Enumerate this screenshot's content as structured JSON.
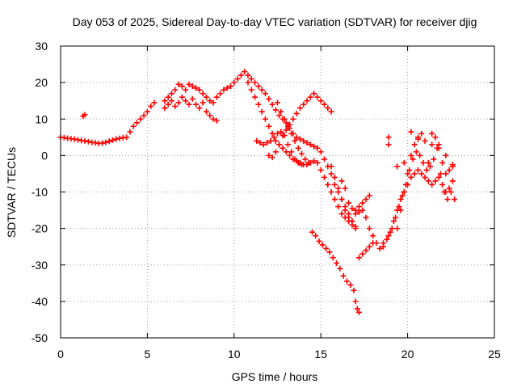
{
  "chart_data": {
    "type": "scatter",
    "title": "Day 053 of 2025, Sidereal Day-to-day VTEC variation (SDTVAR) for receiver djig",
    "xlabel": "GPS time / hours",
    "ylabel": "SDTVAR / TECUs",
    "xlim": [
      0,
      25
    ],
    "ylim": [
      -50,
      30
    ],
    "x_ticks": [
      "0",
      "5",
      "10",
      "15",
      "20",
      "25"
    ],
    "y_ticks": [
      "30",
      "20",
      "10",
      "0",
      "-10",
      "-20",
      "-30",
      "-40",
      "-50"
    ],
    "grid": true,
    "marker": "plus",
    "color": "#ff0000",
    "series": [
      {
        "points": [
          [
            0.0,
            5.0
          ],
          [
            0.2,
            4.9
          ],
          [
            0.4,
            4.7
          ],
          [
            0.6,
            4.6
          ],
          [
            0.8,
            4.5
          ],
          [
            1.0,
            4.3
          ],
          [
            1.2,
            4.1
          ],
          [
            1.4,
            4.0
          ],
          [
            1.6,
            3.8
          ],
          [
            1.8,
            3.6
          ],
          [
            2.0,
            3.5
          ],
          [
            2.2,
            3.3
          ],
          [
            2.4,
            3.4
          ],
          [
            2.6,
            3.6
          ],
          [
            2.8,
            3.9
          ],
          [
            3.0,
            4.2
          ],
          [
            3.2,
            4.5
          ],
          [
            3.4,
            4.7
          ],
          [
            3.6,
            4.9
          ],
          [
            3.8,
            5.0
          ],
          [
            4.0,
            6.5
          ],
          [
            4.2,
            8.0
          ],
          [
            4.4,
            9.0
          ],
          [
            4.6,
            10.0
          ],
          [
            4.8,
            11.0
          ],
          [
            5.0,
            12.0
          ],
          [
            5.2,
            13.5
          ],
          [
            5.4,
            14.5
          ],
          [
            1.3,
            10.8
          ],
          [
            1.4,
            11.2
          ],
          [
            6.0,
            15.0
          ],
          [
            6.2,
            16.0
          ],
          [
            6.4,
            17.0
          ],
          [
            6.6,
            18.0
          ],
          [
            6.8,
            19.5
          ],
          [
            7.0,
            19.0
          ],
          [
            7.2,
            18.0
          ],
          [
            7.4,
            19.5
          ],
          [
            7.6,
            19.0
          ],
          [
            7.8,
            18.5
          ],
          [
            8.0,
            18.0
          ],
          [
            8.2,
            17.0
          ],
          [
            8.4,
            16.0
          ],
          [
            8.6,
            15.0
          ],
          [
            8.8,
            14.5
          ],
          [
            9.0,
            16.0
          ],
          [
            9.2,
            17.0
          ],
          [
            9.4,
            18.0
          ],
          [
            9.6,
            18.5
          ],
          [
            9.8,
            19.0
          ],
          [
            10.0,
            20.0
          ],
          [
            10.2,
            21.0
          ],
          [
            10.4,
            22.0
          ],
          [
            10.6,
            23.0
          ],
          [
            10.8,
            22.0
          ],
          [
            11.0,
            21.0
          ],
          [
            11.2,
            20.0
          ],
          [
            11.4,
            19.0
          ],
          [
            11.6,
            18.0
          ],
          [
            11.8,
            17.0
          ],
          [
            12.0,
            15.5
          ],
          [
            12.2,
            14.0
          ],
          [
            12.4,
            12.5
          ],
          [
            12.6,
            11.0
          ],
          [
            12.8,
            10.0
          ],
          [
            13.0,
            9.0
          ],
          [
            13.2,
            7.5
          ],
          [
            13.4,
            6.0
          ],
          [
            13.6,
            5.0
          ],
          [
            13.8,
            4.5
          ],
          [
            14.0,
            4.0
          ],
          [
            14.2,
            3.5
          ],
          [
            14.4,
            3.0
          ],
          [
            14.6,
            2.5
          ],
          [
            14.8,
            2.0
          ],
          [
            15.0,
            1.0
          ],
          [
            15.2,
            -1.0
          ],
          [
            15.4,
            -3.0
          ],
          [
            15.6,
            -5.0
          ],
          [
            15.8,
            -8.0
          ],
          [
            16.0,
            -10.0
          ],
          [
            16.2,
            -12.0
          ],
          [
            16.4,
            -14.0
          ],
          [
            16.6,
            -16.0
          ],
          [
            16.8,
            -18.0
          ],
          [
            17.0,
            -20.0
          ],
          [
            6.0,
            13.0
          ],
          [
            6.2,
            14.0
          ],
          [
            6.4,
            15.0
          ],
          [
            6.6,
            13.5
          ],
          [
            6.8,
            14.5
          ],
          [
            7.0,
            16.0
          ],
          [
            7.2,
            15.0
          ],
          [
            7.4,
            14.0
          ],
          [
            7.6,
            15.5
          ],
          [
            7.8,
            14.0
          ],
          [
            8.0,
            13.0
          ],
          [
            8.2,
            14.5
          ],
          [
            8.4,
            12.0
          ],
          [
            8.6,
            11.0
          ],
          [
            8.8,
            10.0
          ],
          [
            9.0,
            9.5
          ],
          [
            10.8,
            20.0
          ],
          [
            11.0,
            18.0
          ],
          [
            11.2,
            16.0
          ],
          [
            11.4,
            14.0
          ],
          [
            11.6,
            12.0
          ],
          [
            11.8,
            10.0
          ],
          [
            12.0,
            8.0
          ],
          [
            12.2,
            6.0
          ],
          [
            12.4,
            4.0
          ],
          [
            12.6,
            3.0
          ],
          [
            12.8,
            2.0
          ],
          [
            13.0,
            1.0
          ],
          [
            13.2,
            0.0
          ],
          [
            13.4,
            -1.0
          ],
          [
            13.6,
            -1.5
          ],
          [
            13.8,
            -2.0
          ],
          [
            14.0,
            -2.5
          ],
          [
            14.2,
            -2.5
          ],
          [
            14.4,
            -2.0
          ],
          [
            14.6,
            -1.5
          ],
          [
            14.8,
            -2.0
          ],
          [
            15.0,
            -4.0
          ],
          [
            15.2,
            -6.0
          ],
          [
            15.4,
            -8.0
          ],
          [
            15.6,
            -10.0
          ],
          [
            15.8,
            -12.0
          ],
          [
            16.0,
            -14.0
          ],
          [
            16.2,
            -16.0
          ],
          [
            16.4,
            -17.0
          ],
          [
            16.6,
            -18.0
          ],
          [
            16.8,
            -19.0
          ],
          [
            17.0,
            -19.5
          ],
          [
            11.3,
            4.0
          ],
          [
            11.5,
            3.5
          ],
          [
            11.7,
            3.0
          ],
          [
            11.9,
            3.5
          ],
          [
            12.1,
            4.0
          ],
          [
            12.3,
            5.0
          ],
          [
            12.5,
            6.0
          ],
          [
            12.7,
            6.5
          ],
          [
            12.9,
            5.5
          ],
          [
            13.1,
            3.0
          ],
          [
            13.3,
            1.0
          ],
          [
            13.5,
            -1.0
          ],
          [
            13.7,
            -2.0
          ],
          [
            13.9,
            -2.5
          ],
          [
            12.0,
            0.0
          ],
          [
            12.2,
            -0.5
          ],
          [
            12.4,
            1.0
          ],
          [
            12.6,
            3.0
          ],
          [
            12.8,
            5.5
          ],
          [
            13.0,
            7.0
          ],
          [
            13.2,
            8.5
          ],
          [
            13.4,
            10.0
          ],
          [
            13.6,
            11.5
          ],
          [
            13.8,
            13.0
          ],
          [
            14.0,
            14.0
          ],
          [
            14.2,
            15.0
          ],
          [
            14.4,
            16.0
          ],
          [
            14.6,
            17.0
          ],
          [
            14.8,
            16.0
          ],
          [
            15.0,
            15.0
          ],
          [
            15.2,
            14.0
          ],
          [
            15.4,
            13.0
          ],
          [
            15.6,
            12.0
          ],
          [
            12.5,
            14.5
          ],
          [
            12.7,
            12.0
          ],
          [
            12.9,
            10.0
          ],
          [
            13.1,
            8.0
          ],
          [
            13.3,
            6.0
          ],
          [
            13.5,
            4.0
          ],
          [
            13.7,
            2.0
          ],
          [
            13.9,
            0.5
          ],
          [
            14.1,
            -1.0
          ],
          [
            14.3,
            -2.0
          ],
          [
            14.5,
            -21.0
          ],
          [
            14.7,
            -22.0
          ],
          [
            14.9,
            -23.5
          ],
          [
            15.1,
            -24.5
          ],
          [
            15.3,
            -25.5
          ],
          [
            15.5,
            -26.5
          ],
          [
            15.7,
            -28.0
          ],
          [
            15.9,
            -29.5
          ],
          [
            16.1,
            -31.0
          ],
          [
            16.3,
            -33.0
          ],
          [
            16.5,
            -34.5
          ],
          [
            16.7,
            -35.5
          ],
          [
            16.9,
            -37.0
          ],
          [
            17.0,
            -40.0
          ],
          [
            17.1,
            -42.0
          ],
          [
            17.2,
            -43.0
          ],
          [
            15.6,
            -3.0
          ],
          [
            15.8,
            -6.0
          ],
          [
            16.0,
            -9.0
          ],
          [
            16.2,
            -12.0
          ],
          [
            16.4,
            -15.0
          ],
          [
            16.6,
            -17.0
          ],
          [
            16.8,
            -18.0
          ],
          [
            17.0,
            -16.0
          ],
          [
            17.2,
            -15.5
          ],
          [
            17.4,
            -15.0
          ],
          [
            17.6,
            -17.0
          ],
          [
            17.8,
            -20.0
          ],
          [
            18.0,
            -22.0
          ],
          [
            18.2,
            -24.0
          ],
          [
            18.4,
            -25.5
          ],
          [
            18.6,
            -24.0
          ],
          [
            16.2,
            -7.0
          ],
          [
            16.4,
            -9.0
          ],
          [
            16.6,
            -13.0
          ],
          [
            16.8,
            -14.5
          ],
          [
            17.0,
            -15.0
          ],
          [
            17.2,
            -14.0
          ],
          [
            17.4,
            -13.0
          ],
          [
            17.6,
            -12.0
          ],
          [
            17.8,
            -11.0
          ],
          [
            17.2,
            -28.0
          ],
          [
            17.4,
            -27.0
          ],
          [
            17.6,
            -26.0
          ],
          [
            17.8,
            -25.0
          ],
          [
            18.0,
            -24.0
          ],
          [
            18.6,
            -25.0
          ],
          [
            18.8,
            -23.0
          ],
          [
            19.0,
            -21.0
          ],
          [
            19.2,
            -18.0
          ],
          [
            19.4,
            -15.0
          ],
          [
            19.6,
            -12.0
          ],
          [
            19.8,
            -10.0
          ],
          [
            20.0,
            -8.0
          ],
          [
            20.2,
            -6.0
          ],
          [
            20.4,
            -5.0
          ],
          [
            20.6,
            -4.0
          ],
          [
            20.8,
            -5.0
          ],
          [
            21.0,
            -6.0
          ],
          [
            21.2,
            -7.0
          ],
          [
            21.4,
            -8.0
          ],
          [
            21.6,
            -7.0
          ],
          [
            21.8,
            -6.0
          ],
          [
            22.0,
            -8.0
          ],
          [
            22.2,
            -10.0
          ],
          [
            22.4,
            -9.0
          ],
          [
            22.6,
            -7.0
          ],
          [
            18.9,
            -22.0
          ],
          [
            19.1,
            -20.0
          ],
          [
            19.3,
            -17.0
          ],
          [
            19.5,
            -14.0
          ],
          [
            19.7,
            -11.0
          ],
          [
            19.9,
            -8.0
          ],
          [
            20.1,
            -4.0
          ],
          [
            20.3,
            -1.0
          ],
          [
            20.5,
            1.0
          ],
          [
            20.7,
            0.0
          ],
          [
            20.9,
            -2.0
          ],
          [
            21.1,
            -4.0
          ],
          [
            21.3,
            -3.0
          ],
          [
            21.5,
            -1.0
          ],
          [
            21.7,
            2.0
          ],
          [
            21.9,
            -5.0
          ],
          [
            22.1,
            -10.0
          ],
          [
            22.3,
            -12.0
          ],
          [
            22.5,
            -10.0
          ],
          [
            22.7,
            -12.0
          ],
          [
            19.4,
            -20.0
          ],
          [
            19.6,
            -15.0
          ],
          [
            19.8,
            -10.0
          ],
          [
            20.0,
            -5.0
          ],
          [
            20.2,
            0.0
          ],
          [
            20.4,
            3.0
          ],
          [
            20.6,
            5.0
          ],
          [
            20.8,
            6.0
          ],
          [
            21.0,
            4.0
          ],
          [
            21.2,
            -2.0
          ],
          [
            21.4,
            3.0
          ],
          [
            21.6,
            5.0
          ],
          [
            21.8,
            2.0
          ],
          [
            22.0,
            -2.0
          ],
          [
            22.2,
            -5.0
          ],
          [
            22.4,
            -4.0
          ],
          [
            22.6,
            -3.0
          ],
          [
            18.9,
            5.0
          ],
          [
            18.9,
            3.0
          ],
          [
            19.4,
            -3.0
          ],
          [
            19.8,
            -2.0
          ],
          [
            20.2,
            6.5
          ],
          [
            20.6,
            4.5
          ],
          [
            21.4,
            6.0
          ],
          [
            21.8,
            3.0
          ],
          [
            22.2,
            0.0
          ],
          [
            22.6,
            -2.5
          ]
        ]
      }
    ]
  }
}
